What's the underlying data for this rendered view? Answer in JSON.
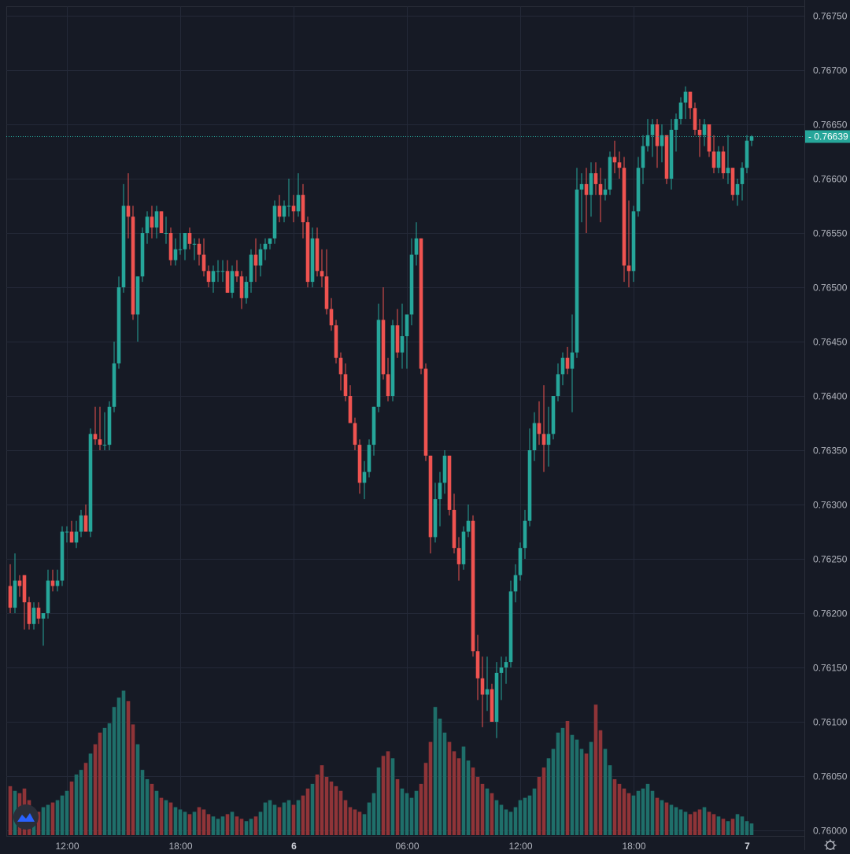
{
  "colors": {
    "background": "#161a25",
    "grid": "#242938",
    "up": "#26a69a",
    "down": "#ef5350",
    "up_volume": "#1f6f6a",
    "down_volume": "#8f3438",
    "axis_text": "#b2b5be",
    "price_tag": "#26a69a"
  },
  "chart_data": {
    "type": "candlestick",
    "price_axis": {
      "min": 0.76,
      "max": 0.7675,
      "ticks": [
        "0.76750",
        "0.76700",
        "0.76650",
        "0.76600",
        "0.76550",
        "0.76500",
        "0.76450",
        "0.76400",
        "0.76350",
        "0.76300",
        "0.76250",
        "0.76200",
        "0.76150",
        "0.76100",
        "0.76050",
        "0.76000"
      ],
      "last_price_label": "0.76639",
      "last_price": 0.76639
    },
    "time_axis": {
      "labels": [
        {
          "text": "12:00",
          "bar": 12,
          "bold": false
        },
        {
          "text": "18:00",
          "bar": 36,
          "bold": false
        },
        {
          "text": "6",
          "bar": 60,
          "bold": true
        },
        {
          "text": "06:00",
          "bar": 84,
          "bold": false
        },
        {
          "text": "12:00",
          "bar": 108,
          "bold": false
        },
        {
          "text": "18:00",
          "bar": 132,
          "bold": false
        },
        {
          "text": "7",
          "bar": 156,
          "bold": true
        }
      ]
    },
    "candles": [
      [
        0.76225,
        0.76245,
        0.762,
        0.76205
      ],
      [
        0.76205,
        0.76255,
        0.762,
        0.7623
      ],
      [
        0.7623,
        0.76235,
        0.76215,
        0.76225
      ],
      [
        0.76235,
        0.76235,
        0.76185,
        0.7621
      ],
      [
        0.7621,
        0.76215,
        0.76185,
        0.7619
      ],
      [
        0.7619,
        0.7621,
        0.76185,
        0.76205
      ],
      [
        0.76205,
        0.7621,
        0.7619,
        0.76195
      ],
      [
        0.76195,
        0.762,
        0.7617,
        0.762
      ],
      [
        0.762,
        0.7624,
        0.76195,
        0.7623
      ],
      [
        0.7623,
        0.7624,
        0.7622,
        0.76225
      ],
      [
        0.76225,
        0.7624,
        0.7622,
        0.7623
      ],
      [
        0.7623,
        0.7628,
        0.76225,
        0.76275
      ],
      [
        0.76275,
        0.7628,
        0.76265,
        0.76275
      ],
      [
        0.76275,
        0.76285,
        0.76265,
        0.76265
      ],
      [
        0.76265,
        0.76285,
        0.7626,
        0.76275
      ],
      [
        0.76275,
        0.76295,
        0.7627,
        0.7629
      ],
      [
        0.7629,
        0.763,
        0.76275,
        0.76275
      ],
      [
        0.76275,
        0.7637,
        0.7627,
        0.76365
      ],
      [
        0.76365,
        0.7639,
        0.76355,
        0.7636
      ],
      [
        0.7636,
        0.7639,
        0.7635,
        0.76355
      ],
      [
        0.76355,
        0.76385,
        0.7635,
        0.76355
      ],
      [
        0.76355,
        0.76395,
        0.7635,
        0.7639
      ],
      [
        0.7639,
        0.7645,
        0.76385,
        0.7643
      ],
      [
        0.7643,
        0.7651,
        0.76425,
        0.765
      ],
      [
        0.765,
        0.76595,
        0.76495,
        0.76575
      ],
      [
        0.76575,
        0.76605,
        0.76545,
        0.76565
      ],
      [
        0.76565,
        0.76575,
        0.7647,
        0.76475
      ],
      [
        0.76475,
        0.7651,
        0.7645,
        0.7651
      ],
      [
        0.7651,
        0.76555,
        0.76505,
        0.7655
      ],
      [
        0.7655,
        0.7657,
        0.7654,
        0.76565
      ],
      [
        0.76565,
        0.76575,
        0.76545,
        0.76555
      ],
      [
        0.76555,
        0.76575,
        0.76545,
        0.7657
      ],
      [
        0.7657,
        0.7657,
        0.7655,
        0.7655
      ],
      [
        0.7655,
        0.76565,
        0.7654,
        0.7655
      ],
      [
        0.7655,
        0.76555,
        0.7652,
        0.76525
      ],
      [
        0.76525,
        0.76545,
        0.7652,
        0.76535
      ],
      [
        0.76535,
        0.7655,
        0.7653,
        0.76535
      ],
      [
        0.76535,
        0.7655,
        0.76525,
        0.7655
      ],
      [
        0.7655,
        0.76555,
        0.76535,
        0.7654
      ],
      [
        0.7654,
        0.76545,
        0.76525,
        0.7654
      ],
      [
        0.7654,
        0.76545,
        0.7652,
        0.7653
      ],
      [
        0.7653,
        0.76545,
        0.7651,
        0.76515
      ],
      [
        0.76515,
        0.7652,
        0.765,
        0.76505
      ],
      [
        0.76505,
        0.7652,
        0.76495,
        0.76515
      ],
      [
        0.76515,
        0.76525,
        0.76505,
        0.76515
      ],
      [
        0.76515,
        0.76525,
        0.76505,
        0.76515
      ],
      [
        0.76515,
        0.76525,
        0.76495,
        0.76495
      ],
      [
        0.76495,
        0.7652,
        0.7649,
        0.76515
      ],
      [
        0.76515,
        0.76525,
        0.76505,
        0.7651
      ],
      [
        0.7651,
        0.76515,
        0.7648,
        0.7649
      ],
      [
        0.7649,
        0.7651,
        0.76485,
        0.76505
      ],
      [
        0.76505,
        0.76535,
        0.76495,
        0.7653
      ],
      [
        0.7653,
        0.76545,
        0.76505,
        0.7652
      ],
      [
        0.7652,
        0.7654,
        0.7651,
        0.76535
      ],
      [
        0.76535,
        0.76545,
        0.76525,
        0.7654
      ],
      [
        0.7654,
        0.76545,
        0.76535,
        0.76545
      ],
      [
        0.76545,
        0.7658,
        0.7654,
        0.76575
      ],
      [
        0.76575,
        0.76585,
        0.7656,
        0.76565
      ],
      [
        0.76565,
        0.7658,
        0.7656,
        0.76575
      ],
      [
        0.76575,
        0.766,
        0.76565,
        0.76575
      ],
      [
        0.76575,
        0.76585,
        0.7656,
        0.7657
      ],
      [
        0.7657,
        0.76605,
        0.76565,
        0.76585
      ],
      [
        0.76585,
        0.76595,
        0.76545,
        0.7656
      ],
      [
        0.7656,
        0.76565,
        0.765,
        0.76505
      ],
      [
        0.76505,
        0.76555,
        0.765,
        0.76545
      ],
      [
        0.76545,
        0.76555,
        0.7651,
        0.76515
      ],
      [
        0.76515,
        0.76535,
        0.765,
        0.7651
      ],
      [
        0.7651,
        0.76535,
        0.76475,
        0.7648
      ],
      [
        0.7648,
        0.7649,
        0.7646,
        0.76465
      ],
      [
        0.76465,
        0.7647,
        0.7643,
        0.76435
      ],
      [
        0.76435,
        0.7644,
        0.76405,
        0.7642
      ],
      [
        0.7642,
        0.7643,
        0.76395,
        0.764
      ],
      [
        0.764,
        0.7641,
        0.76375,
        0.76375
      ],
      [
        0.76375,
        0.7638,
        0.7635,
        0.76355
      ],
      [
        0.76355,
        0.7636,
        0.7631,
        0.7632
      ],
      [
        0.7632,
        0.7634,
        0.76305,
        0.7633
      ],
      [
        0.7633,
        0.7636,
        0.76325,
        0.76355
      ],
      [
        0.76355,
        0.7639,
        0.76345,
        0.7639
      ],
      [
        0.7639,
        0.76485,
        0.76385,
        0.7647
      ],
      [
        0.7647,
        0.765,
        0.76415,
        0.7642
      ],
      [
        0.7642,
        0.76435,
        0.76395,
        0.764
      ],
      [
        0.764,
        0.7647,
        0.76395,
        0.76465
      ],
      [
        0.76465,
        0.7648,
        0.76435,
        0.7644
      ],
      [
        0.7644,
        0.76485,
        0.76425,
        0.76455
      ],
      [
        0.76455,
        0.76475,
        0.76425,
        0.76475
      ],
      [
        0.76475,
        0.76545,
        0.76465,
        0.7653
      ],
      [
        0.7653,
        0.7656,
        0.7652,
        0.76545
      ],
      [
        0.76545,
        0.76545,
        0.7642,
        0.76425
      ],
      [
        0.76425,
        0.7643,
        0.7634,
        0.76345
      ],
      [
        0.76345,
        0.76345,
        0.76255,
        0.7627
      ],
      [
        0.7627,
        0.7632,
        0.76265,
        0.76305
      ],
      [
        0.76305,
        0.7633,
        0.7628,
        0.7632
      ],
      [
        0.7632,
        0.7635,
        0.7631,
        0.76345
      ],
      [
        0.76345,
        0.76345,
        0.7629,
        0.76295
      ],
      [
        0.76295,
        0.7631,
        0.76255,
        0.7626
      ],
      [
        0.7626,
        0.7627,
        0.7623,
        0.76245
      ],
      [
        0.76245,
        0.7628,
        0.7624,
        0.76275
      ],
      [
        0.76275,
        0.763,
        0.7627,
        0.76285
      ],
      [
        0.76285,
        0.7629,
        0.7616,
        0.76165
      ],
      [
        0.76165,
        0.7618,
        0.7612,
        0.7614
      ],
      [
        0.7614,
        0.7616,
        0.76095,
        0.76125
      ],
      [
        0.76125,
        0.7616,
        0.7611,
        0.7613
      ],
      [
        0.7613,
        0.76135,
        0.761,
        0.761
      ],
      [
        0.761,
        0.76155,
        0.76085,
        0.76145
      ],
      [
        0.76145,
        0.7616,
        0.7612,
        0.7615
      ],
      [
        0.7615,
        0.7616,
        0.76135,
        0.76155
      ],
      [
        0.76155,
        0.7623,
        0.7615,
        0.7622
      ],
      [
        0.7622,
        0.76245,
        0.7621,
        0.76235
      ],
      [
        0.76235,
        0.76265,
        0.7623,
        0.7626
      ],
      [
        0.7626,
        0.76295,
        0.7625,
        0.76285
      ],
      [
        0.76285,
        0.7637,
        0.7628,
        0.7635
      ],
      [
        0.7635,
        0.76385,
        0.7634,
        0.76375
      ],
      [
        0.76375,
        0.76395,
        0.76355,
        0.76365
      ],
      [
        0.76365,
        0.7641,
        0.7633,
        0.76355
      ],
      [
        0.76355,
        0.7639,
        0.76335,
        0.76365
      ],
      [
        0.76365,
        0.764,
        0.7636,
        0.764
      ],
      [
        0.764,
        0.7643,
        0.76395,
        0.7642
      ],
      [
        0.7642,
        0.7644,
        0.7641,
        0.76435
      ],
      [
        0.76435,
        0.76445,
        0.7642,
        0.76425
      ],
      [
        0.76425,
        0.76475,
        0.76385,
        0.7644
      ],
      [
        0.7644,
        0.7661,
        0.76435,
        0.7659
      ],
      [
        0.7659,
        0.76605,
        0.7656,
        0.76595
      ],
      [
        0.76595,
        0.7661,
        0.7655,
        0.76585
      ],
      [
        0.76585,
        0.76615,
        0.76565,
        0.76605
      ],
      [
        0.76605,
        0.76615,
        0.76585,
        0.76595
      ],
      [
        0.76595,
        0.7661,
        0.7656,
        0.76585
      ],
      [
        0.76585,
        0.766,
        0.7658,
        0.7659
      ],
      [
        0.7659,
        0.76625,
        0.76585,
        0.7662
      ],
      [
        0.7662,
        0.76635,
        0.76605,
        0.76615
      ],
      [
        0.76615,
        0.76625,
        0.766,
        0.7661
      ],
      [
        0.7661,
        0.7662,
        0.76505,
        0.7652
      ],
      [
        0.7652,
        0.7658,
        0.765,
        0.76515
      ],
      [
        0.76515,
        0.76575,
        0.76505,
        0.7657
      ],
      [
        0.7657,
        0.7662,
        0.76565,
        0.7661
      ],
      [
        0.7661,
        0.7664,
        0.76595,
        0.7663
      ],
      [
        0.7663,
        0.76655,
        0.76625,
        0.7664
      ],
      [
        0.7664,
        0.76655,
        0.7662,
        0.7665
      ],
      [
        0.7665,
        0.76655,
        0.7661,
        0.7663
      ],
      [
        0.7663,
        0.7665,
        0.76615,
        0.7664
      ],
      [
        0.7664,
        0.7664,
        0.76595,
        0.766
      ],
      [
        0.766,
        0.76655,
        0.7659,
        0.76645
      ],
      [
        0.76645,
        0.7666,
        0.76625,
        0.76655
      ],
      [
        0.76655,
        0.76675,
        0.7665,
        0.7667
      ],
      [
        0.7667,
        0.76685,
        0.76655,
        0.7668
      ],
      [
        0.7668,
        0.7668,
        0.76655,
        0.76665
      ],
      [
        0.76665,
        0.7667,
        0.7664,
        0.76645
      ],
      [
        0.76645,
        0.76655,
        0.7662,
        0.7664
      ],
      [
        0.7664,
        0.76655,
        0.7663,
        0.7665
      ],
      [
        0.7665,
        0.7665,
        0.7662,
        0.76625
      ],
      [
        0.76625,
        0.7664,
        0.76605,
        0.7661
      ],
      [
        0.7661,
        0.7663,
        0.76605,
        0.76625
      ],
      [
        0.76625,
        0.7663,
        0.766,
        0.76605
      ],
      [
        0.76605,
        0.7664,
        0.76595,
        0.7661
      ],
      [
        0.7661,
        0.7661,
        0.7658,
        0.76585
      ],
      [
        0.76585,
        0.766,
        0.76575,
        0.76595
      ],
      [
        0.76595,
        0.76615,
        0.7658,
        0.7661
      ],
      [
        0.7661,
        0.7664,
        0.76605,
        0.76635
      ],
      [
        0.76635,
        0.7664,
        0.7663,
        0.76639
      ]
    ],
    "volumes": [
      42,
      38,
      36,
      40,
      30,
      22,
      20,
      24,
      26,
      28,
      30,
      34,
      38,
      46,
      52,
      56,
      62,
      70,
      78,
      88,
      92,
      96,
      110,
      118,
      124,
      115,
      95,
      78,
      56,
      48,
      44,
      38,
      32,
      30,
      28,
      24,
      22,
      20,
      18,
      20,
      24,
      22,
      18,
      16,
      14,
      16,
      18,
      20,
      16,
      14,
      12,
      14,
      16,
      20,
      28,
      30,
      26,
      24,
      28,
      30,
      26,
      30,
      34,
      40,
      44,
      52,
      60,
      50,
      46,
      42,
      38,
      30,
      24,
      22,
      20,
      18,
      28,
      36,
      58,
      68,
      72,
      66,
      48,
      40,
      36,
      32,
      38,
      44,
      62,
      80,
      110,
      100,
      88,
      80,
      72,
      66,
      76,
      64,
      58,
      50,
      44,
      40,
      36,
      30,
      26,
      22,
      20,
      24,
      30,
      32,
      34,
      40,
      50,
      58,
      66,
      74,
      88,
      92,
      98,
      86,
      82,
      74,
      70,
      80,
      112,
      90,
      74,
      60,
      48,
      44,
      40,
      36,
      34,
      38,
      40,
      44,
      38,
      32,
      30,
      28,
      26,
      24,
      22,
      20,
      18,
      20,
      22,
      24,
      20,
      18,
      16,
      14,
      12,
      14,
      18,
      16,
      12,
      10
    ]
  }
}
